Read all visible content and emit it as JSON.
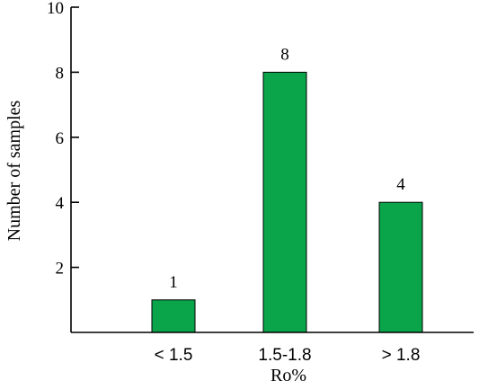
{
  "chart_data": {
    "type": "bar",
    "categories": [
      "< 1.5",
      "1.5-1.8",
      "> 1.8"
    ],
    "values": [
      1,
      8,
      4
    ],
    "data_labels": [
      "1",
      "8",
      "4"
    ],
    "xlabel": "Ro%",
    "ylabel": "Number of samples",
    "ylim": [
      0,
      10
    ],
    "yticks": [
      2,
      4,
      6,
      8,
      10
    ],
    "ytick_labels": [
      "2",
      "4",
      "6",
      "8",
      "10"
    ],
    "grid": false,
    "legend": "none",
    "bar_color": "#0aa54a"
  }
}
